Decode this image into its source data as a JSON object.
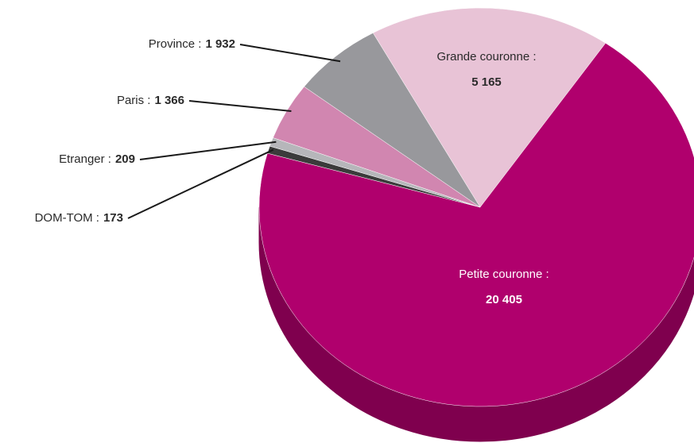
{
  "chart_data": {
    "type": "pie",
    "style": "3d",
    "categories": [
      "Grande couronne :",
      "Petite couronne :",
      "DOM-TOM :",
      "Etranger :",
      "Paris :",
      "Province :"
    ],
    "values": [
      5165,
      20405,
      173,
      209,
      1366,
      1932
    ],
    "value_labels": [
      "5 165",
      "20 405",
      "173",
      "209",
      "1 366",
      "1 932"
    ],
    "colors": [
      "#e8c3d6",
      "#b0006d",
      "#3b3b3b",
      "#b6b6ba",
      "#d186b0",
      "#98989c"
    ]
  }
}
